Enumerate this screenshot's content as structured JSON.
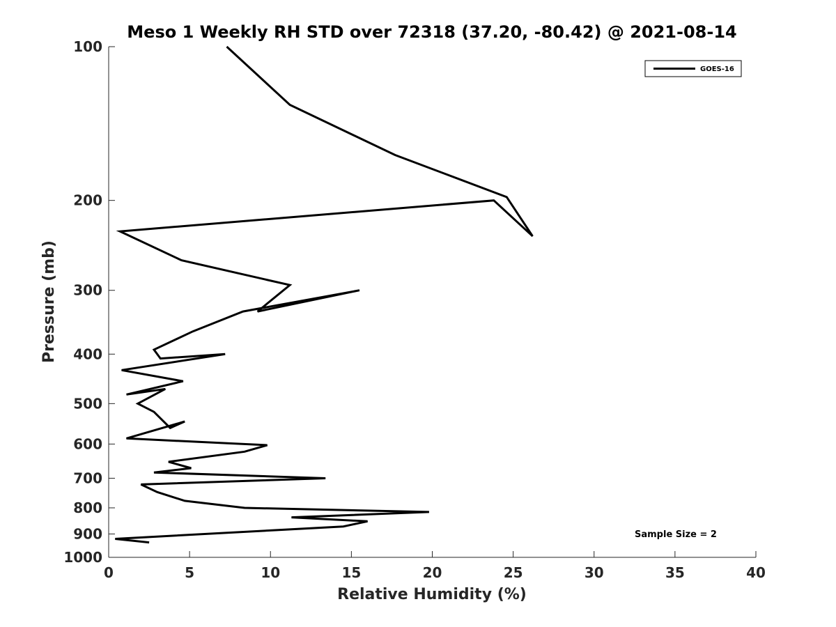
{
  "chart_data": {
    "type": "line",
    "title": "Meso 1 Weekly RH STD over 72318 (37.20, -80.42) @ 2021-08-14",
    "xlabel": "Relative Humidity (%)",
    "ylabel": "Pressure (mb)",
    "xlim": [
      0,
      40
    ],
    "ylim": [
      100,
      1000
    ],
    "y_scale": "log",
    "y_reversed": true,
    "x_ticks": [
      0,
      5,
      10,
      15,
      20,
      25,
      30,
      35,
      40
    ],
    "y_ticks": [
      100,
      200,
      300,
      400,
      500,
      600,
      700,
      800,
      900,
      1000
    ],
    "grid": false,
    "legend": {
      "position": "top-right",
      "entries": [
        "GOES-16"
      ]
    },
    "annotation": "Sample Size = 2",
    "series": [
      {
        "name": "GOES-16",
        "color": "#000000",
        "x": [
          7.3,
          11.2,
          17.7,
          24.6,
          26.2,
          23.8,
          0.7,
          4.5,
          11.2,
          9.2,
          15.5,
          8.3,
          5.2,
          2.8,
          3.2,
          7.2,
          0.8,
          4.6,
          1.1,
          3.5,
          1.8,
          2.8,
          3.8,
          4.7,
          1.1,
          9.8,
          8.4,
          3.7,
          5.1,
          2.8,
          13.4,
          2.0,
          3.0,
          4.7,
          8.4,
          19.8,
          11.3,
          16.0,
          14.5,
          0.4,
          2.5
        ],
        "y": [
          100,
          130,
          163,
          197,
          235,
          200,
          230,
          262,
          293,
          330,
          300,
          330,
          361,
          392,
          408,
          400,
          430,
          452,
          480,
          468,
          500,
          519,
          558,
          542,
          585,
          603,
          621,
          650,
          669,
          682,
          700,
          720,
          745,
          775,
          800,
          815,
          835,
          850,
          870,
          920,
          935
        ]
      }
    ]
  }
}
